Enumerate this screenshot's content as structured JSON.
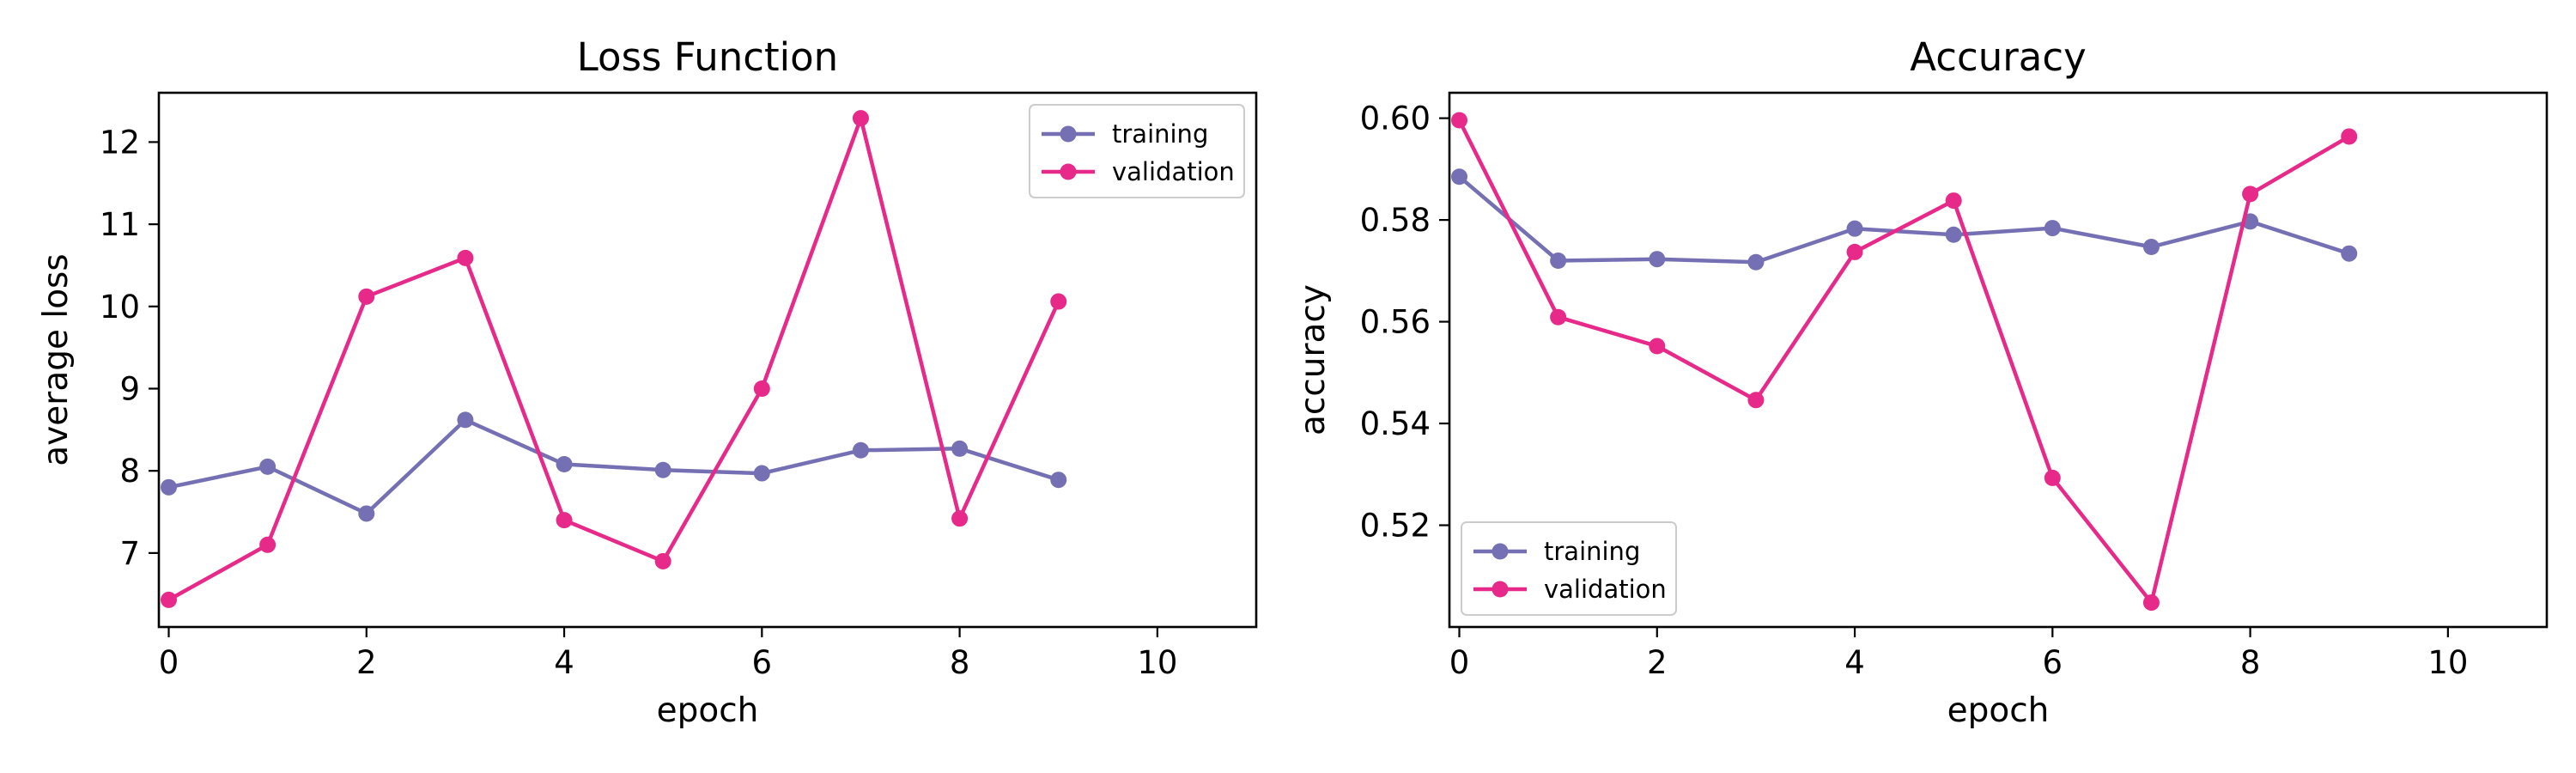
{
  "chart_data": [
    {
      "type": "line",
      "title": "Loss Function",
      "xlabel": "epoch",
      "ylabel": "average loss",
      "xlim": [
        -0.1,
        11
      ],
      "ylim": [
        6.1,
        12.6
      ],
      "x_ticks": [
        0,
        2,
        4,
        6,
        8,
        10
      ],
      "y_ticks": [
        7,
        8,
        9,
        10,
        11,
        12
      ],
      "x_tick_labels": [
        "0",
        "2",
        "4",
        "6",
        "8",
        "10"
      ],
      "y_tick_labels": [
        "7",
        "8",
        "9",
        "10",
        "11",
        "12"
      ],
      "grid": false,
      "legend_position": "top-right",
      "x": [
        0,
        1,
        2,
        3,
        4,
        5,
        6,
        7,
        8,
        9
      ],
      "series": [
        {
          "name": "training",
          "color": "#7570b3",
          "values": [
            7.8,
            8.05,
            7.48,
            8.62,
            8.08,
            8.01,
            7.97,
            8.25,
            8.27,
            7.89
          ]
        },
        {
          "name": "validation",
          "color": "#e7298a",
          "values": [
            6.43,
            7.1,
            10.12,
            10.59,
            7.4,
            6.9,
            9.0,
            12.29,
            7.42,
            10.06
          ]
        }
      ]
    },
    {
      "type": "line",
      "title": "Accuracy",
      "xlabel": "epoch",
      "ylabel": "accuracy",
      "xlim": [
        -0.1,
        11
      ],
      "ylim": [
        0.5,
        0.605
      ],
      "x_ticks": [
        0,
        2,
        4,
        6,
        8,
        10
      ],
      "y_ticks": [
        0.52,
        0.54,
        0.56,
        0.58,
        0.6
      ],
      "x_tick_labels": [
        "0",
        "2",
        "4",
        "6",
        "8",
        "10"
      ],
      "y_tick_labels": [
        "0.52",
        "0.54",
        "0.56",
        "0.58",
        "0.60"
      ],
      "grid": false,
      "legend_position": "bottom-left",
      "x": [
        0,
        1,
        2,
        3,
        4,
        5,
        6,
        7,
        8,
        9
      ],
      "series": [
        {
          "name": "training",
          "color": "#7570b3",
          "values": [
            0.5885,
            0.572,
            0.5723,
            0.5717,
            0.5783,
            0.5771,
            0.5784,
            0.5747,
            0.5797,
            0.5734
          ]
        },
        {
          "name": "validation",
          "color": "#e7298a",
          "values": [
            0.5996,
            0.5609,
            0.5552,
            0.5446,
            0.5737,
            0.5838,
            0.5293,
            0.5048,
            0.5851,
            0.5964
          ]
        }
      ]
    }
  ]
}
